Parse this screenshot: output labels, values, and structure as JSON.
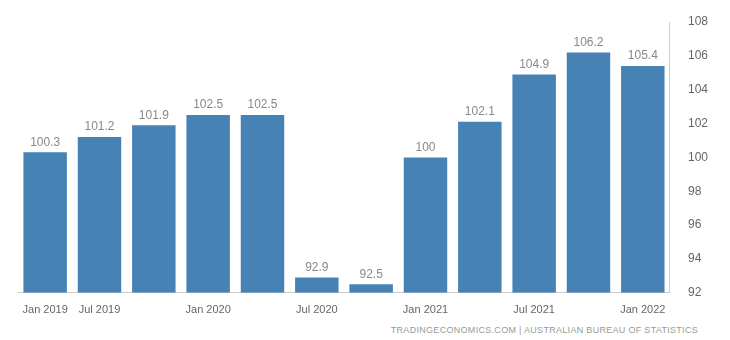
{
  "chart_data": {
    "type": "bar",
    "source": "TRADINGECONOMICS.COM | AUSTRALIAN BUREAU OF STATISTICS",
    "categories": [
      "Jan 2019",
      "Jul 2019",
      null,
      "Jan 2020",
      null,
      "Jul 2020",
      null,
      "Jan 2021",
      null,
      "Jul 2021",
      null,
      "Jan 2022"
    ],
    "values": [
      100.3,
      101.2,
      101.9,
      102.5,
      102.5,
      92.9,
      92.5,
      100,
      102.1,
      104.9,
      106.2,
      105.4
    ],
    "color": "#4682b4",
    "ylim": [
      92,
      108
    ],
    "yticks": [
      92,
      94,
      96,
      98,
      100,
      102,
      104,
      106,
      108
    ],
    "grid": false,
    "data_labels": true
  }
}
